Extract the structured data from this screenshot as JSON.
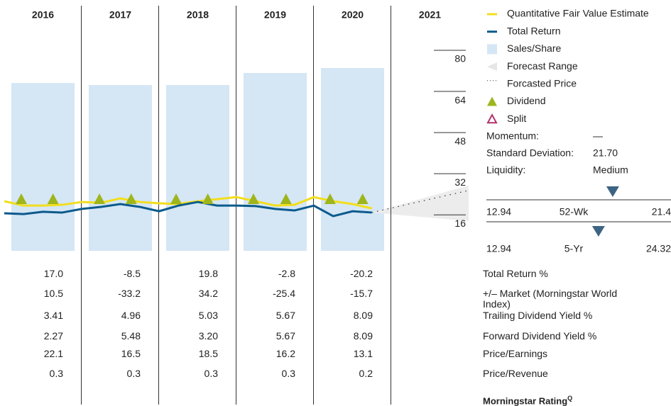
{
  "chart_data": {
    "type": "line",
    "categories": [
      "2016",
      "2017",
      "2018",
      "2019",
      "2020",
      "2021"
    ],
    "x": [
      2016.0,
      2016.25,
      2016.5,
      2016.75,
      2017.0,
      2017.25,
      2017.5,
      2017.75,
      2018.0,
      2018.25,
      2018.5,
      2018.75,
      2019.0,
      2019.25,
      2019.5,
      2019.75,
      2020.0,
      2020.25,
      2020.5,
      2020.75
    ],
    "series": [
      {
        "name": "Quantitative Fair Value Estimate",
        "color": "#f2de1c",
        "values": [
          21.3,
          19.6,
          19.6,
          19.9,
          21.0,
          20.7,
          22.4,
          21.0,
          20.5,
          20.2,
          21.3,
          22.1,
          22.9,
          21.3,
          19.6,
          19.9,
          22.9,
          21.3,
          20.2,
          18.5
        ]
      },
      {
        "name": "Total Return",
        "color": "#0b5a8c",
        "values": [
          16.6,
          16.3,
          17.2,
          16.9,
          18.3,
          19.1,
          20.2,
          19.1,
          17.4,
          19.6,
          21.0,
          19.6,
          19.6,
          19.4,
          18.3,
          17.7,
          19.6,
          15.5,
          17.4,
          16.9
        ]
      }
    ],
    "bars": {
      "name": "Sales/Share",
      "color": "#d5e6f5",
      "values": [
        67.3,
        66.5,
        66.5,
        71.2,
        73.1
      ]
    },
    "forecast": {
      "range_name": "Forecast Range",
      "price_name": "Forcasted Price",
      "x": [
        2020.75,
        2022.0
      ],
      "values": [
        16.9,
        25.5
      ],
      "low": [
        16.9,
        13.6
      ],
      "high": [
        16.9,
        27.4
      ]
    },
    "dividends": {
      "name": "Dividend",
      "color": "#9fb51c",
      "x": [
        2016.22,
        2016.63,
        2017.23,
        2017.64,
        2018.22,
        2018.63,
        2019.22,
        2019.64,
        2020.21,
        2020.63
      ]
    },
    "splits": {
      "name": "Split",
      "color": "#b0306a"
    },
    "xlim": [
      2016,
      2022
    ],
    "ylim": [
      2,
      80
    ],
    "yticks": [
      16,
      32,
      48,
      64,
      80
    ],
    "stats": [
      {
        "label": "Momentum:",
        "value": "—"
      },
      {
        "label": "Standard Deviation:",
        "value": "21.70"
      },
      {
        "label": "Liquidity:",
        "value": "Medium"
      }
    ],
    "ranges": [
      {
        "label": "52-Wk",
        "low": 12.94,
        "high": 21.4,
        "current": 18.73
      },
      {
        "label": "5-Yr",
        "low": 12.94,
        "high": 24.32,
        "current": 19.85
      }
    ],
    "table": {
      "rows": [
        {
          "label": "Total Return %",
          "values": [
            "17.0",
            "-8.5",
            "19.8",
            "-2.8",
            "-20.2"
          ]
        },
        {
          "label": "+/– Market (Morningstar World Index)",
          "values": [
            "10.5",
            "-33.2",
            "34.2",
            "-25.4",
            "-15.7"
          ]
        },
        {
          "label": "Trailing Dividend Yield %",
          "values": [
            "3.41",
            "4.96",
            "5.03",
            "5.67",
            "8.09"
          ]
        },
        {
          "label": "Forward Dividend Yield %",
          "values": [
            "2.27",
            "5.48",
            "3.20",
            "5.67",
            "8.09"
          ]
        },
        {
          "label": "Price/Earnings",
          "values": [
            "22.1",
            "16.5",
            "18.5",
            "16.2",
            "13.1"
          ]
        },
        {
          "label": "Price/Revenue",
          "values": [
            "0.3",
            "0.3",
            "0.3",
            "0.3",
            "0.2"
          ]
        }
      ]
    },
    "rating_label": "Morningstar Rating",
    "rating_sup": "Q"
  }
}
